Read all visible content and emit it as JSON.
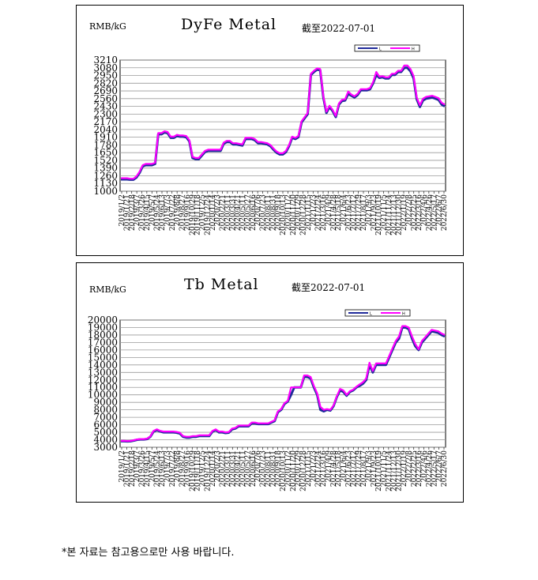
{
  "footnote": "*본 자료는 참고용으로만 사용 바랍니다.",
  "colors": {
    "series_low": "#1f2a9a",
    "series_high": "#ff00ff",
    "grid": "#9a9a9a",
    "frame": "#000000"
  },
  "chart_data": [
    {
      "type": "line",
      "title": "DyFe Metal",
      "unit": "RMB/kG",
      "asof": "截至2022-07-01",
      "legend": [
        "L",
        "H"
      ],
      "legend_position": "top-right",
      "grid": true,
      "ylim": [
        1000,
        3210
      ],
      "yticks": [
        1000,
        1130,
        1260,
        1390,
        1520,
        1650,
        1780,
        1910,
        2040,
        2170,
        2300,
        2430,
        2560,
        2690,
        2820,
        2950,
        3080,
        3210
      ],
      "xticks": [
        "2019/1/2",
        "2019/1/21",
        "2019/2/18",
        "2019/3/7",
        "2019/3/26",
        "2019/4/15",
        "2019/5/7",
        "2019/5/24",
        "2019/6/13",
        "2019/7/3",
        "2019/7/22",
        "2019/8/8",
        "2019/8/27",
        "2019/9/16",
        "2019/10/29",
        "2019/11/18",
        "2019/12/5",
        "2019/12/24",
        "2020/1/14",
        "2020/2/3",
        "2020/2/21",
        "2020/3/11",
        "2020/3/31",
        "2020/4/21",
        "2020/5/11",
        "2020/5/27",
        "2020/6/16",
        "2020/7/6",
        "2020/7/23",
        "2020/8/11",
        "2020/8/31",
        "2020/9/18",
        "2020/10/13",
        "2020/11/2",
        "2020/11/20",
        "2020/12/9",
        "2020/12/28",
        "2021/1/15",
        "2021/2/3",
        "2021/2/24",
        "2021/3/16",
        "2021/4/9",
        "2021/4/28",
        "2021/5/18",
        "2021/6/4",
        "2021/6/23",
        "2021/7/12",
        "2021/7/29",
        "2021/8/17",
        "2021/9/3",
        "2021/9/23",
        "2021/10/19",
        "2021/11/5",
        "2021/11/24",
        "2021/12/13",
        "2021/12/30",
        "2022/1/19",
        "2022/2/8",
        "2022/2/25",
        "2022/3/16",
        "2022/4/6",
        "2022/4/26",
        "2022/5/17",
        "2022/6/7",
        "2022/6/30"
      ],
      "series": [
        {
          "name": "L",
          "values": [
            1200,
            1200,
            1200,
            1195,
            1195,
            1230,
            1310,
            1420,
            1440,
            1440,
            1440,
            1460,
            1960,
            1960,
            1990,
            1980,
            1900,
            1900,
            1930,
            1920,
            1920,
            1910,
            1840,
            1560,
            1540,
            1540,
            1600,
            1660,
            1680,
            1680,
            1680,
            1680,
            1680,
            1800,
            1830,
            1830,
            1790,
            1790,
            1780,
            1770,
            1880,
            1880,
            1880,
            1860,
            1810,
            1810,
            1800,
            1790,
            1760,
            1700,
            1650,
            1620,
            1620,
            1660,
            1760,
            1900,
            1880,
            1910,
            2160,
            2230,
            2300,
            2960,
            3010,
            3050,
            3040,
            2580,
            2320,
            2420,
            2350,
            2250,
            2460,
            2520,
            2530,
            2640,
            2610,
            2580,
            2620,
            2700,
            2700,
            2700,
            2720,
            2820,
            2960,
            2910,
            2920,
            2900,
            2900,
            2960,
            2960,
            3010,
            3010,
            3080,
            3080,
            3020,
            2900,
            2550,
            2420,
            2530,
            2560,
            2570,
            2580,
            2560,
            2540,
            2460,
            2430
          ]
        },
        {
          "name": "H",
          "values": [
            1220,
            1220,
            1220,
            1210,
            1210,
            1250,
            1330,
            1440,
            1460,
            1460,
            1460,
            1480,
            1980,
            1980,
            2010,
            2000,
            1920,
            1920,
            1950,
            1940,
            1940,
            1930,
            1860,
            1580,
            1560,
            1560,
            1620,
            1680,
            1700,
            1700,
            1700,
            1700,
            1700,
            1820,
            1850,
            1850,
            1810,
            1810,
            1800,
            1790,
            1900,
            1900,
            1900,
            1880,
            1830,
            1830,
            1820,
            1810,
            1780,
            1720,
            1670,
            1640,
            1640,
            1680,
            1780,
            1920,
            1900,
            1930,
            2180,
            2250,
            2320,
            2980,
            3030,
            3070,
            3060,
            2600,
            2340,
            2440,
            2370,
            2270,
            2480,
            2540,
            2550,
            2680,
            2630,
            2600,
            2640,
            2720,
            2720,
            2720,
            2740,
            2840,
            3010,
            2930,
            2940,
            2920,
            2920,
            2980,
            2980,
            3030,
            3030,
            3120,
            3120,
            3060,
            2940,
            2580,
            2450,
            2560,
            2590,
            2600,
            2610,
            2590,
            2570,
            2490,
            2460
          ]
        }
      ]
    },
    {
      "type": "line",
      "title": "Tb Metal",
      "unit": "RMB/kG",
      "asof": "截至2022-07-01",
      "legend": [
        "L",
        "H"
      ],
      "legend_position": "top-right",
      "grid": true,
      "ylim": [
        3000,
        20000
      ],
      "yticks": [
        3000,
        4000,
        5000,
        6000,
        7000,
        8000,
        9000,
        10000,
        11000,
        12000,
        13000,
        14000,
        15000,
        16000,
        17000,
        18000,
        19000,
        20000
      ],
      "xticks": [
        "2019/1/2",
        "2019/1/21",
        "2019/2/18",
        "2019/3/7",
        "2019/3/26",
        "2019/4/15",
        "2019/5/7",
        "2019/5/24",
        "2019/6/13",
        "2019/7/3",
        "2019/7/22",
        "2019/8/8",
        "2019/8/27",
        "2019/9/16",
        "2019/10/29",
        "2019/11/18",
        "2019/12/5",
        "2019/12/24",
        "2020/1/14",
        "2020/2/3",
        "2020/2/21",
        "2020/3/11",
        "2020/3/31",
        "2020/4/21",
        "2020/5/11",
        "2020/5/27",
        "2020/6/16",
        "2020/7/6",
        "2020/7/23",
        "2020/8/11",
        "2020/8/31",
        "2020/9/18",
        "2020/10/13",
        "2020/11/2",
        "2020/11/20",
        "2020/12/9",
        "2020/12/28",
        "2021/1/15",
        "2021/2/3",
        "2021/2/24",
        "2021/3/16",
        "2021/4/9",
        "2021/4/28",
        "2021/5/18",
        "2021/6/4",
        "2021/6/23",
        "2021/7/12",
        "2021/7/29",
        "2021/8/17",
        "2021/9/3",
        "2021/9/23",
        "2021/10/19",
        "2021/11/5",
        "2021/11/24",
        "2021/12/13",
        "2021/12/30",
        "2022/1/19",
        "2022/2/8",
        "2022/2/25",
        "2022/3/16",
        "2022/4/6",
        "2022/4/26",
        "2022/5/17",
        "2022/6/7",
        "2022/6/30"
      ],
      "series": [
        {
          "name": "L",
          "values": [
            3800,
            3800,
            3780,
            3800,
            3900,
            4000,
            4050,
            4050,
            4100,
            4400,
            5100,
            5300,
            5100,
            5000,
            5000,
            5000,
            5000,
            4950,
            4850,
            4400,
            4300,
            4300,
            4400,
            4400,
            4500,
            4500,
            4500,
            4500,
            5100,
            5300,
            5000,
            5000,
            4900,
            4950,
            5400,
            5500,
            5800,
            5800,
            5800,
            5800,
            6200,
            6200,
            6100,
            6100,
            6100,
            6100,
            6300,
            6500,
            7700,
            8000,
            8800,
            9100,
            10000,
            11000,
            11000,
            11000,
            12400,
            12400,
            12200,
            11000,
            10000,
            8000,
            7800,
            8000,
            7900,
            8500,
            9700,
            10600,
            10400,
            9900,
            10400,
            10600,
            11000,
            11200,
            11500,
            12000,
            14000,
            13000,
            14000,
            14000,
            14000,
            14000,
            15000,
            16000,
            17000,
            17500,
            19000,
            19000,
            18800,
            17500,
            16500,
            16000,
            17000,
            17500,
            18000,
            18500,
            18400,
            18300,
            18000,
            17800
          ]
        },
        {
          "name": "H",
          "values": [
            3850,
            3850,
            3830,
            3850,
            3950,
            4050,
            4100,
            4100,
            4150,
            4450,
            5200,
            5400,
            5200,
            5100,
            5100,
            5100,
            5100,
            5050,
            4950,
            4500,
            4400,
            4400,
            4500,
            4500,
            4600,
            4600,
            4600,
            4600,
            5200,
            5400,
            5100,
            5100,
            5000,
            5050,
            5500,
            5600,
            5900,
            5900,
            5900,
            5900,
            6300,
            6300,
            6200,
            6200,
            6200,
            6200,
            6400,
            6600,
            7800,
            8100,
            8900,
            9200,
            11000,
            11000,
            11000,
            11000,
            12600,
            12600,
            12400,
            11200,
            10200,
            8400,
            8000,
            8100,
            8000,
            8600,
            9800,
            10800,
            10600,
            10000,
            10500,
            10700,
            11100,
            11400,
            11700,
            12200,
            14300,
            13200,
            14200,
            14200,
            14200,
            14200,
            15200,
            16200,
            17200,
            17800,
            19200,
            19200,
            19000,
            17800,
            16800,
            16100,
            17200,
            17700,
            18200,
            18700,
            18600,
            18500,
            18200,
            18000
          ]
        }
      ]
    }
  ]
}
